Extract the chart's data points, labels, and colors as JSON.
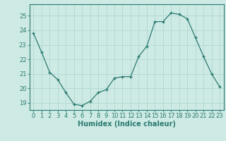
{
  "x": [
    0,
    1,
    2,
    3,
    4,
    5,
    6,
    7,
    8,
    9,
    10,
    11,
    12,
    13,
    14,
    15,
    16,
    17,
    18,
    19,
    20,
    21,
    22,
    23
  ],
  "y": [
    23.8,
    22.5,
    21.1,
    20.6,
    19.7,
    18.9,
    18.8,
    19.1,
    19.7,
    19.9,
    20.7,
    20.8,
    20.8,
    22.2,
    22.9,
    24.6,
    24.6,
    25.2,
    25.1,
    24.8,
    23.5,
    22.2,
    21.0,
    20.1
  ],
  "line_color": "#2a7a6f",
  "marker": "+",
  "marker_size": 3,
  "bg_color": "#ceeae5",
  "grid_color": "#b0d8d2",
  "xlabel": "Humidex (Indice chaleur)",
  "ylim": [
    18.5,
    25.8
  ],
  "yticks": [
    19,
    20,
    21,
    22,
    23,
    24,
    25
  ],
  "xticks": [
    0,
    1,
    2,
    3,
    4,
    5,
    6,
    7,
    8,
    9,
    10,
    11,
    12,
    13,
    14,
    15,
    16,
    17,
    18,
    19,
    20,
    21,
    22,
    23
  ],
  "spine_color": "#2a7a6f",
  "tick_fontsize": 6,
  "xlabel_fontsize": 7
}
